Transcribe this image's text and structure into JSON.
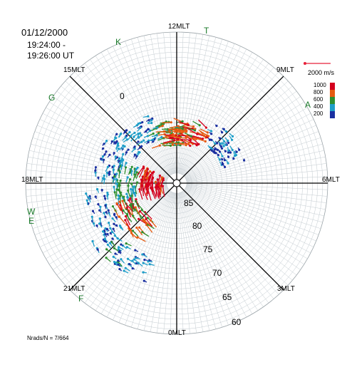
{
  "header": {
    "date": "01/12/2000",
    "time_start": "19:24:00 -",
    "time_end": "19:26:00 UT"
  },
  "footer": {
    "nrads": "Nrads/N = 7/664"
  },
  "mlt_labels": {
    "m12": "12MLT",
    "m9": "9MLT",
    "m6": "6MLT",
    "m3": "3MLT",
    "m0": "0MLT",
    "m21": "21MLT",
    "m18": "18MLT",
    "m15": "15MLT"
  },
  "stations": {
    "T": "T",
    "K": "K",
    "G": "G",
    "A": "A",
    "W": "W",
    "E": "E",
    "F": "F"
  },
  "latitude_labels": {
    "l85": "85",
    "l80": "80",
    "l75": "75",
    "l70": "70",
    "l65": "65",
    "l60": "60",
    "l0": "0"
  },
  "velocity_scale": {
    "label": "2000 m/s",
    "color": "#e8203a"
  },
  "colorbar": {
    "ticks": [
      "1000",
      "800",
      "600",
      "400",
      "200"
    ],
    "colors": [
      "#d4001e",
      "#e65a10",
      "#2f8f2f",
      "#1e9ec8",
      "#1a2fa0"
    ]
  },
  "chart_data": {
    "type": "polar-vector-map",
    "projection": "magnetic local time / magnetic latitude",
    "lat_range": [
      60,
      90
    ],
    "lat_rings": [
      85,
      80,
      75,
      70,
      65,
      60
    ],
    "mlt_hours": [
      0,
      3,
      6,
      9,
      12,
      15,
      18,
      21
    ],
    "velocity_range_mps": [
      200,
      1000
    ],
    "grid": true,
    "vector_clusters": [
      {
        "mlt": 12.5,
        "lat": 80,
        "speed": 650
      },
      {
        "mlt": 11.0,
        "lat": 80,
        "speed": 850
      },
      {
        "mlt": 14.5,
        "lat": 78,
        "speed": 350
      },
      {
        "mlt": 16.5,
        "lat": 76,
        "speed": 300
      },
      {
        "mlt": 17.8,
        "lat": 80,
        "speed": 500
      },
      {
        "mlt": 17.5,
        "lat": 85,
        "speed": 950
      },
      {
        "mlt": 19.5,
        "lat": 74,
        "speed": 300
      },
      {
        "mlt": 20.5,
        "lat": 79,
        "speed": 750
      },
      {
        "mlt": 21.5,
        "lat": 72,
        "speed": 350
      },
      {
        "mlt": 8.5,
        "lat": 78,
        "speed": 250
      }
    ]
  }
}
